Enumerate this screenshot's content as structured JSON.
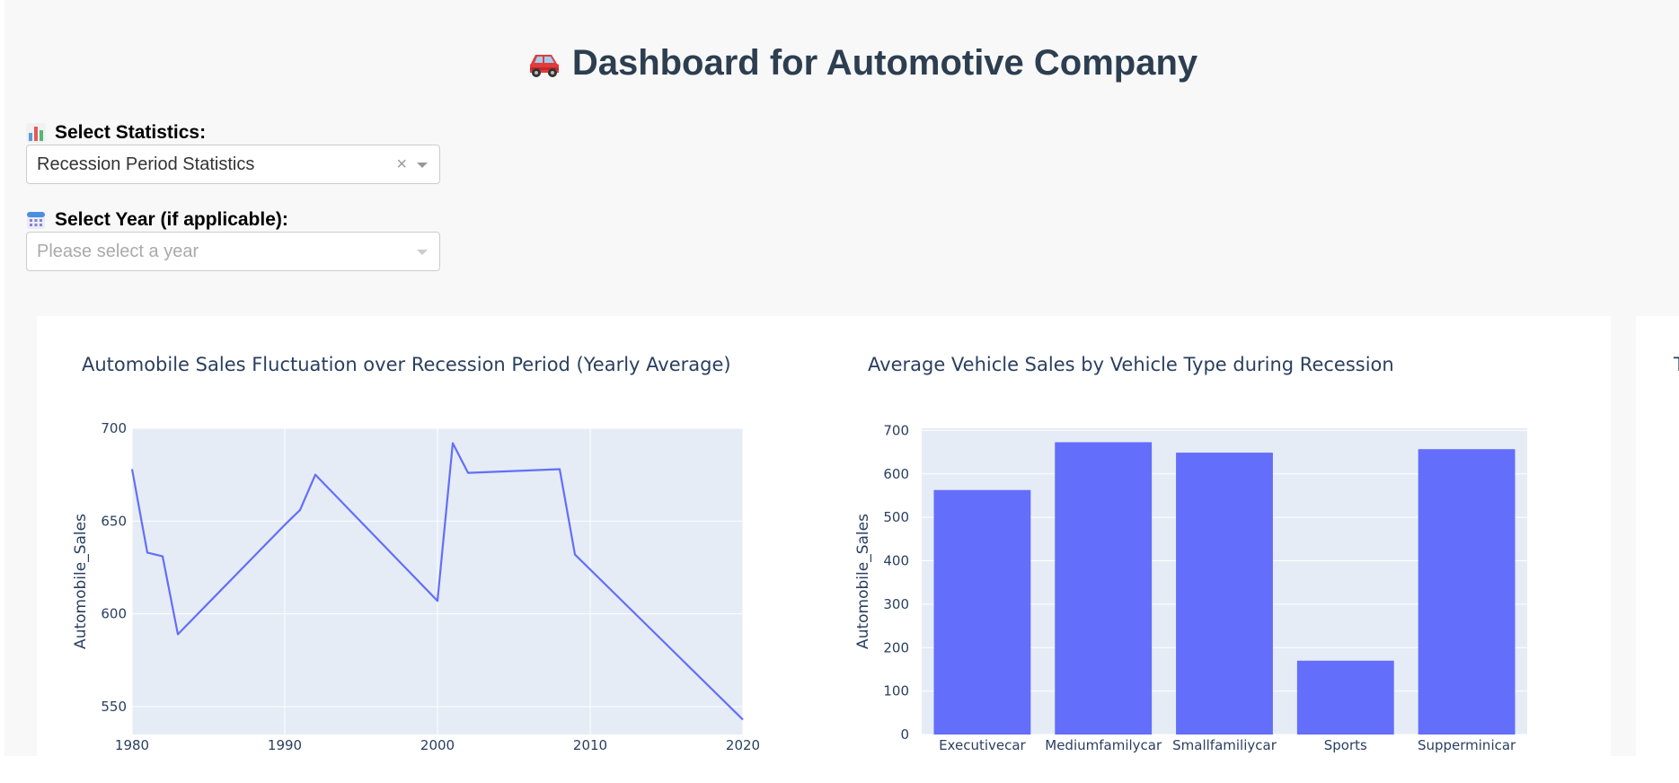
{
  "header": {
    "title": "Dashboard for Automotive Company",
    "icon": "car-icon"
  },
  "controls": {
    "statistics": {
      "label": "Select Statistics:",
      "icon": "bar-chart-icon",
      "value": "Recession Period Statistics"
    },
    "year": {
      "label": "Select Year (if applicable):",
      "icon": "calendar-icon",
      "placeholder": "Please select a year"
    }
  },
  "charts": {
    "line_title": "Automobile Sales Fluctuation over Recession Period (Yearly Average)",
    "bar_title": "Average Vehicle Sales by Vehicle Type during Recession",
    "third_title_partial": "T"
  },
  "colors": {
    "series": "#636efa",
    "plot_bg": "#e5ecf6",
    "title": "#2c3e50"
  },
  "chart_data": [
    {
      "type": "line",
      "title": "Automobile Sales Fluctuation over Recession Period (Yearly Average)",
      "xlabel": "",
      "ylabel": "Automobile_Sales",
      "xlim": [
        1980,
        2020
      ],
      "ylim": [
        535,
        700
      ],
      "xticks": [
        1980,
        1990,
        2000,
        2010,
        2020
      ],
      "yticks": [
        550,
        600,
        650,
        700
      ],
      "x": [
        1980,
        1981,
        1982,
        1983,
        1990,
        1991,
        1992,
        2000,
        2001,
        2002,
        2008,
        2009,
        2020
      ],
      "y": [
        678,
        633,
        631,
        589,
        648,
        656,
        675,
        607,
        692,
        676,
        678,
        632,
        543
      ]
    },
    {
      "type": "bar",
      "title": "Average Vehicle Sales by Vehicle Type during Recession",
      "xlabel": "",
      "ylabel": "Automobile_Sales",
      "ylim": [
        0,
        705
      ],
      "yticks": [
        0,
        100,
        200,
        300,
        400,
        500,
        600,
        700
      ],
      "categories": [
        "Executivecar",
        "Mediumfamilycar",
        "Smallfamiliycar",
        "Sports",
        "Supperminicar"
      ],
      "values": [
        563,
        673,
        649,
        170,
        657
      ]
    }
  ]
}
